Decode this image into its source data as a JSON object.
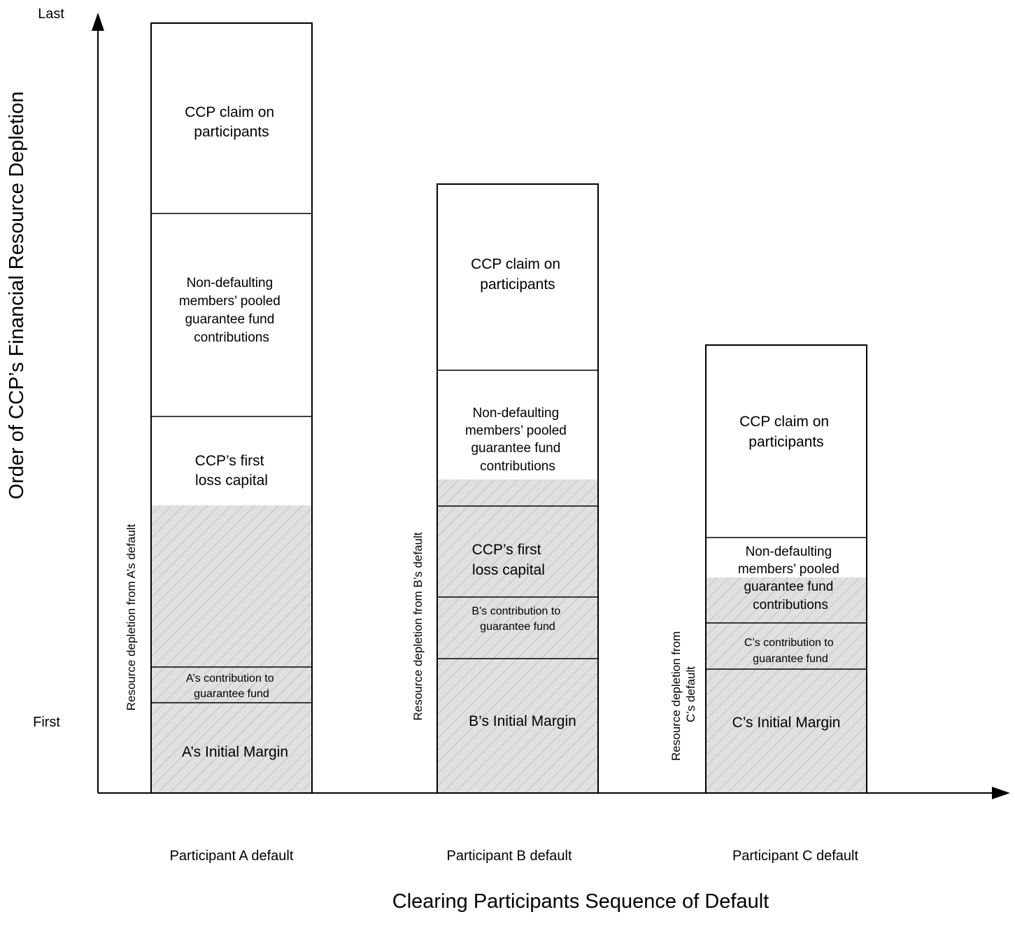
{
  "y_axis": {
    "title": "Order of CCP’s Financial Resource Depletion",
    "top_label": "Last",
    "bottom_label": "First"
  },
  "x_axis": {
    "title": "Clearing Participants Sequence of Default"
  },
  "colors": {
    "line": "#000000",
    "hatch_fill": "#e0e0e0",
    "hatch_stroke": "#b0b0b0",
    "box_fill": "#ffffff"
  },
  "columns": [
    {
      "id": "a",
      "label": "Participant A default",
      "depletion_label": [
        "Resource depletion from A’s default"
      ],
      "blocks": [
        {
          "label": [
            "CCP claim on",
            "participants"
          ]
        },
        {
          "label": [
            "Non-defaulting",
            "members’ pooled",
            "guarantee fund",
            "contributions"
          ]
        },
        {
          "label": [
            "CCP’s first",
            "loss capital"
          ]
        },
        {
          "label": []
        },
        {
          "label": [
            "A’s contribution to",
            "guarantee fund"
          ]
        },
        {
          "label": [
            "A’s Initial Margin"
          ]
        }
      ]
    },
    {
      "id": "b",
      "label": "Participant B default",
      "depletion_label": [
        "Resource depletion from B’s default"
      ],
      "blocks": [
        {
          "label": [
            "CCP claim on",
            "participants"
          ]
        },
        {
          "label": [
            "Non-defaulting",
            "members’ pooled",
            "guarantee fund",
            "contributions"
          ]
        },
        {
          "label": [
            "CCP’s first",
            "loss capital"
          ]
        },
        {
          "label": [
            "B’s contribution to",
            "guarantee fund"
          ]
        },
        {
          "label": [
            "B’s Initial Margin"
          ]
        }
      ]
    },
    {
      "id": "c",
      "label": "Participant C default",
      "depletion_label": [
        "Resource depletion from",
        "C’s default"
      ],
      "blocks": [
        {
          "label": [
            "CCP claim on",
            "participants"
          ]
        },
        {
          "label": [
            "Non-defaulting",
            "members’ pooled",
            "guarantee fund",
            "contributions"
          ]
        },
        {
          "label": [
            "C’s contribution to",
            "guarantee fund"
          ]
        },
        {
          "label": [
            "C’s Initial Margin"
          ]
        }
      ]
    }
  ]
}
